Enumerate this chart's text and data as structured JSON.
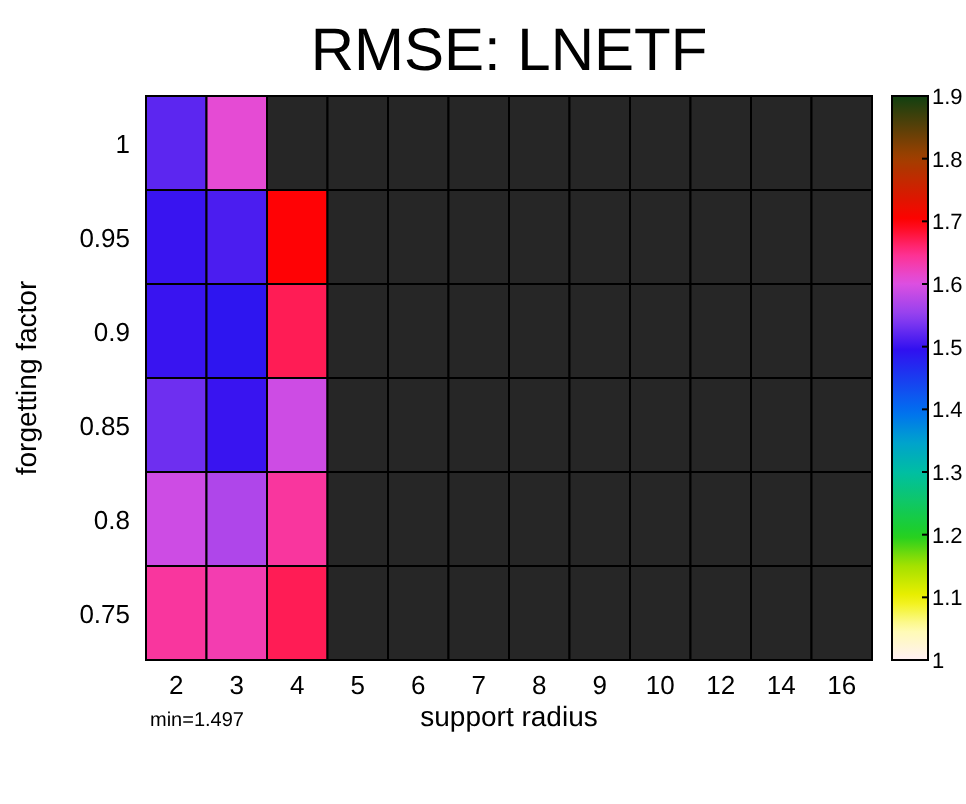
{
  "chart_data": {
    "type": "heatmap",
    "title": "RMSE: LNETF",
    "xlabel": "support radius",
    "ylabel": "forgetting factor",
    "categories": [
      "2",
      "3",
      "4",
      "5",
      "6",
      "7",
      "8",
      "9",
      "10",
      "12",
      "14",
      "16"
    ],
    "y_categories": [
      "1",
      "0.95",
      "0.9",
      "0.85",
      "0.8",
      "0.75"
    ],
    "cells": [
      [
        1.52,
        1.61,
        null,
        null,
        null,
        null,
        null,
        null,
        null,
        null,
        null,
        null
      ],
      [
        1.5,
        1.51,
        1.7,
        null,
        null,
        null,
        null,
        null,
        null,
        null,
        null,
        null
      ],
      [
        1.5,
        1.49,
        1.67,
        null,
        null,
        null,
        null,
        null,
        null,
        null,
        null,
        null
      ],
      [
        1.53,
        1.5,
        1.59,
        null,
        null,
        null,
        null,
        null,
        null,
        null,
        null,
        null
      ],
      [
        1.59,
        1.57,
        1.64,
        null,
        null,
        null,
        null,
        null,
        null,
        null,
        null,
        null
      ],
      [
        1.64,
        1.63,
        1.67,
        null,
        null,
        null,
        null,
        null,
        null,
        null,
        null,
        null
      ]
    ],
    "clim": [
      1,
      1.9
    ],
    "cticks": [
      1,
      1.1,
      1.2,
      1.3,
      1.4,
      1.5,
      1.6,
      1.7,
      1.8,
      1.9
    ],
    "annotations": [
      "min=1.497"
    ]
  }
}
